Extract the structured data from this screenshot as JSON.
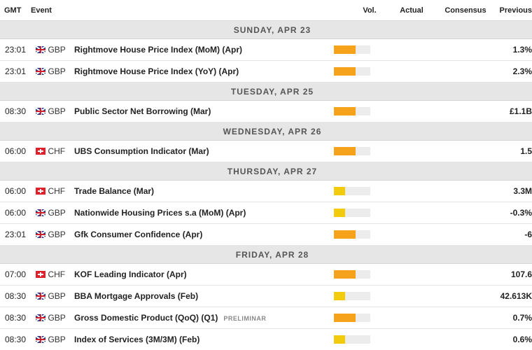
{
  "header": {
    "time": "GMT",
    "event": "Event",
    "vol": "Vol.",
    "actual": "Actual",
    "consensus": "Consensus",
    "previous": "Previous"
  },
  "colors": {
    "high": "#f7a21b",
    "medium": "#f2cc0c",
    "bar_bg": "#ececec"
  },
  "days": [
    {
      "label": "SUNDAY, APR 23",
      "events": [
        {
          "time": "23:01",
          "currency": "GBP",
          "flag": "uk-flag-icon",
          "name": "Rightmove House Price Index (MoM) (Apr)",
          "tag": "",
          "volatility": 0.6,
          "level": "high",
          "actual": "",
          "consensus": "",
          "previous": "1.3%"
        },
        {
          "time": "23:01",
          "currency": "GBP",
          "flag": "uk-flag-icon",
          "name": "Rightmove House Price Index (YoY) (Apr)",
          "tag": "",
          "volatility": 0.6,
          "level": "high",
          "actual": "",
          "consensus": "",
          "previous": "2.3%"
        }
      ]
    },
    {
      "label": "TUESDAY, APR 25",
      "events": [
        {
          "time": "08:30",
          "currency": "GBP",
          "flag": "uk-flag-icon",
          "name": "Public Sector Net Borrowing (Mar)",
          "tag": "",
          "volatility": 0.6,
          "level": "high",
          "actual": "",
          "consensus": "",
          "previous": "£1.1B"
        }
      ]
    },
    {
      "label": "WEDNESDAY, APR 26",
      "events": [
        {
          "time": "06:00",
          "currency": "CHF",
          "flag": "swiss-flag-icon",
          "name": "UBS Consumption Indicator (Mar)",
          "tag": "",
          "volatility": 0.6,
          "level": "high",
          "actual": "",
          "consensus": "",
          "previous": "1.5"
        }
      ]
    },
    {
      "label": "THURSDAY, APR 27",
      "events": [
        {
          "time": "06:00",
          "currency": "CHF",
          "flag": "swiss-flag-icon",
          "name": "Trade Balance (Mar)",
          "tag": "",
          "volatility": 0.3,
          "level": "medium",
          "actual": "",
          "consensus": "",
          "previous": "3.3M"
        },
        {
          "time": "06:00",
          "currency": "GBP",
          "flag": "uk-flag-icon",
          "name": "Nationwide Housing Prices s.a (MoM) (Apr)",
          "tag": "",
          "volatility": 0.3,
          "level": "medium",
          "actual": "",
          "consensus": "",
          "previous": "-0.3%"
        },
        {
          "time": "23:01",
          "currency": "GBP",
          "flag": "uk-flag-icon",
          "name": "Gfk Consumer Confidence (Apr)",
          "tag": "",
          "volatility": 0.6,
          "level": "high",
          "actual": "",
          "consensus": "",
          "previous": "-6"
        }
      ]
    },
    {
      "label": "FRIDAY, APR 28",
      "events": [
        {
          "time": "07:00",
          "currency": "CHF",
          "flag": "swiss-flag-icon",
          "name": "KOF Leading Indicator (Apr)",
          "tag": "",
          "volatility": 0.6,
          "level": "high",
          "actual": "",
          "consensus": "",
          "previous": "107.6"
        },
        {
          "time": "08:30",
          "currency": "GBP",
          "flag": "uk-flag-icon",
          "name": "BBA Mortgage Approvals (Feb)",
          "tag": "",
          "volatility": 0.3,
          "level": "medium",
          "actual": "",
          "consensus": "",
          "previous": "42.613K"
        },
        {
          "time": "08:30",
          "currency": "GBP",
          "flag": "uk-flag-icon",
          "name": "Gross Domestic Product (QoQ) (Q1)",
          "tag": "PRELIMINAR",
          "volatility": 0.6,
          "level": "high",
          "actual": "",
          "consensus": "",
          "previous": "0.7%"
        },
        {
          "time": "08:30",
          "currency": "GBP",
          "flag": "uk-flag-icon",
          "name": "Index of Services (3M/3M) (Feb)",
          "tag": "",
          "volatility": 0.3,
          "level": "medium",
          "actual": "",
          "consensus": "",
          "previous": "0.6%"
        }
      ]
    }
  ]
}
